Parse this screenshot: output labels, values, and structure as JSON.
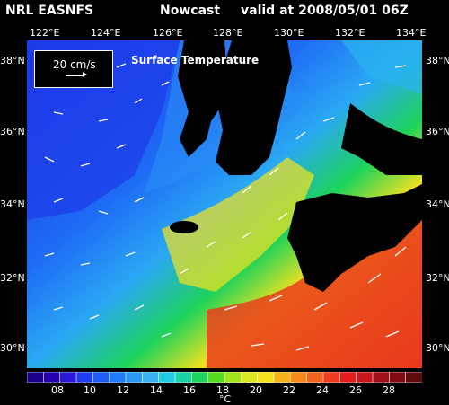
{
  "header": {
    "left": "NRL EASNFS",
    "middle": "Nowcast",
    "right": "valid at 2008/05/01 06Z"
  },
  "map": {
    "title": "Surface Temperature",
    "scale_label": "20 cm/s",
    "lon_labels": [
      "122°E",
      "124°E",
      "126°E",
      "128°E",
      "130°E",
      "132°E",
      "134°E"
    ],
    "lat_labels": [
      "38°N",
      "36°N",
      "34°N",
      "32°N",
      "30°N"
    ],
    "land_color": "#000000"
  },
  "colorbar": {
    "unit": "°C",
    "tick_labels": [
      "08",
      "10",
      "12",
      "14",
      "16",
      "18",
      "20",
      "22",
      "24",
      "26",
      "28"
    ],
    "colors": [
      "#1a008c",
      "#2500b0",
      "#2a19d8",
      "#1f3cf0",
      "#1e5cf5",
      "#1f7bf7",
      "#2a99f5",
      "#3ab4f0",
      "#22cbe0",
      "#19d2a5",
      "#1dd35a",
      "#54dc1e",
      "#a0e41a",
      "#d6ea1f",
      "#f5e11e",
      "#f7b21a",
      "#f68a1a",
      "#f3621e",
      "#ee3a1e",
      "#e41a1c",
      "#c8141a",
      "#a00f16",
      "#7e0c12",
      "#5e0a0e"
    ]
  }
}
